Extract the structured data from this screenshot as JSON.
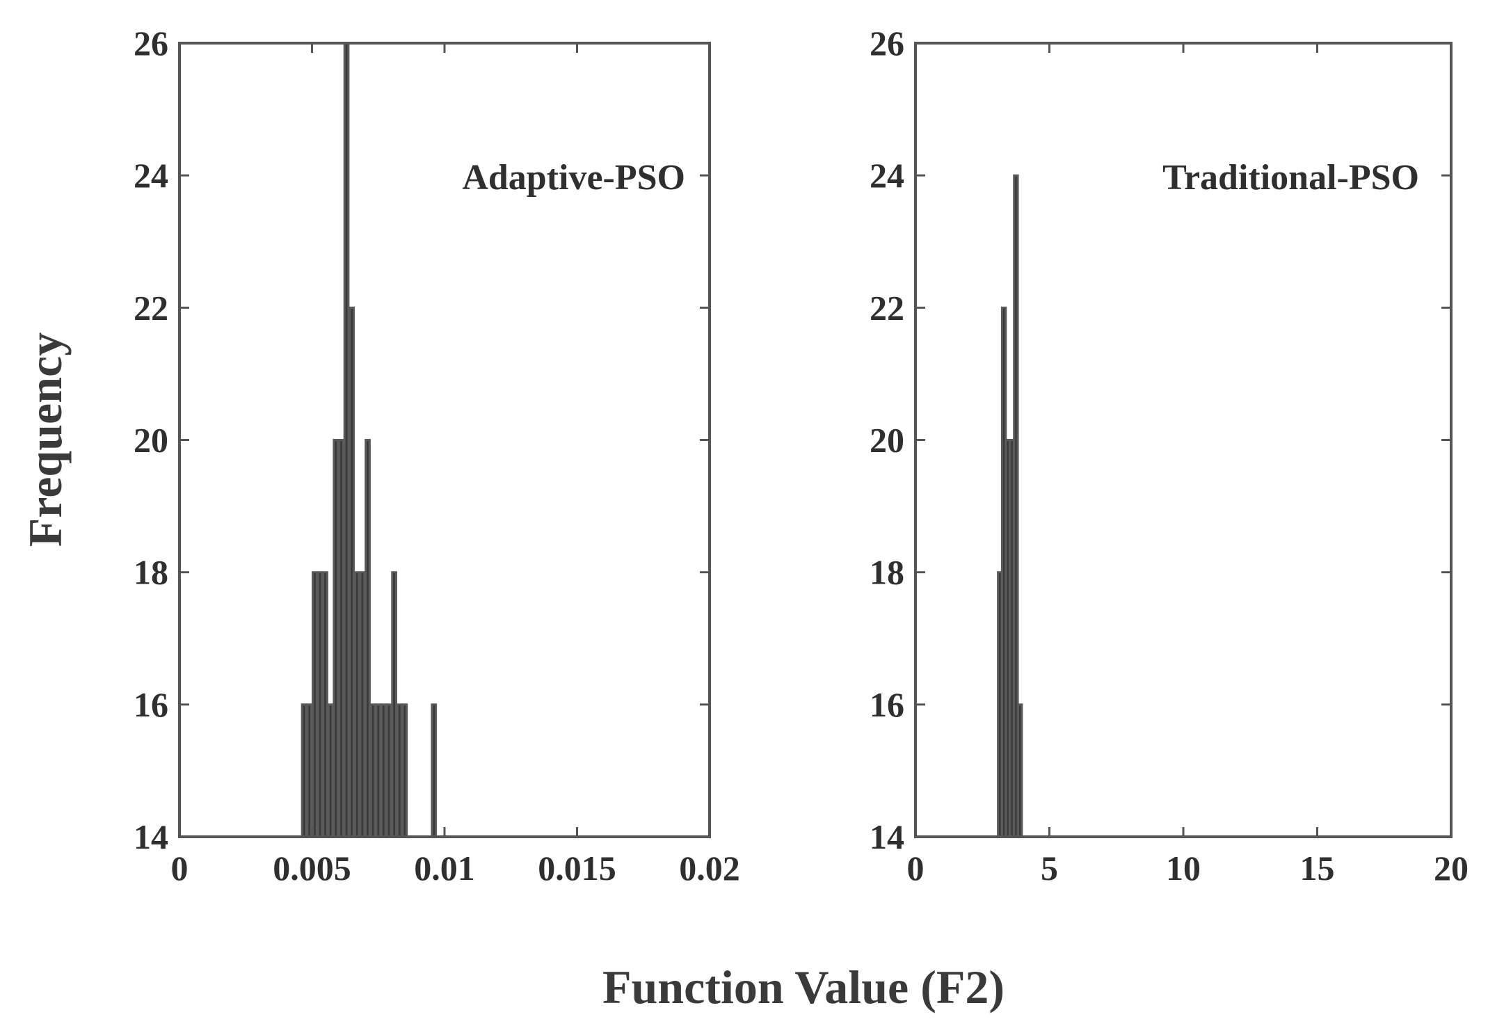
{
  "figure": {
    "xlabel": "Function Value (F2)",
    "ylabel": "Frequency"
  },
  "chart_data": [
    {
      "type": "bar",
      "label": "Adaptive-PSO",
      "xlim": [
        0,
        0.02
      ],
      "ylim": [
        14,
        26
      ],
      "xticks": [
        "0",
        "0.005",
        "0.01",
        "0.015",
        "0.02"
      ],
      "yticks": [
        "14",
        "16",
        "18",
        "20",
        "22",
        "24",
        "26"
      ],
      "bin_width": 0.00015,
      "x": [
        0.0047,
        0.0049,
        0.0051,
        0.0053,
        0.0055,
        0.0057,
        0.0059,
        0.0061,
        0.0063,
        0.0065,
        0.0067,
        0.0069,
        0.0071,
        0.0073,
        0.0075,
        0.0077,
        0.0079,
        0.0081,
        0.0083,
        0.0085,
        0.0096
      ],
      "values": [
        16,
        16,
        18,
        18,
        18,
        16,
        20,
        20,
        26,
        22,
        18,
        18,
        20,
        16,
        16,
        16,
        16,
        18,
        16,
        16,
        16
      ]
    },
    {
      "type": "bar",
      "label": "Traditional-PSO",
      "xlim": [
        0,
        20
      ],
      "ylim": [
        14,
        26
      ],
      "xticks": [
        "0",
        "5",
        "10",
        "15",
        "20"
      ],
      "yticks": [
        "14",
        "16",
        "18",
        "20",
        "22",
        "24",
        "26"
      ],
      "bin_width": 0.14,
      "x": [
        3.15,
        3.3,
        3.45,
        3.6,
        3.75,
        3.9
      ],
      "values": [
        18,
        22,
        20,
        20,
        24,
        16
      ]
    }
  ]
}
